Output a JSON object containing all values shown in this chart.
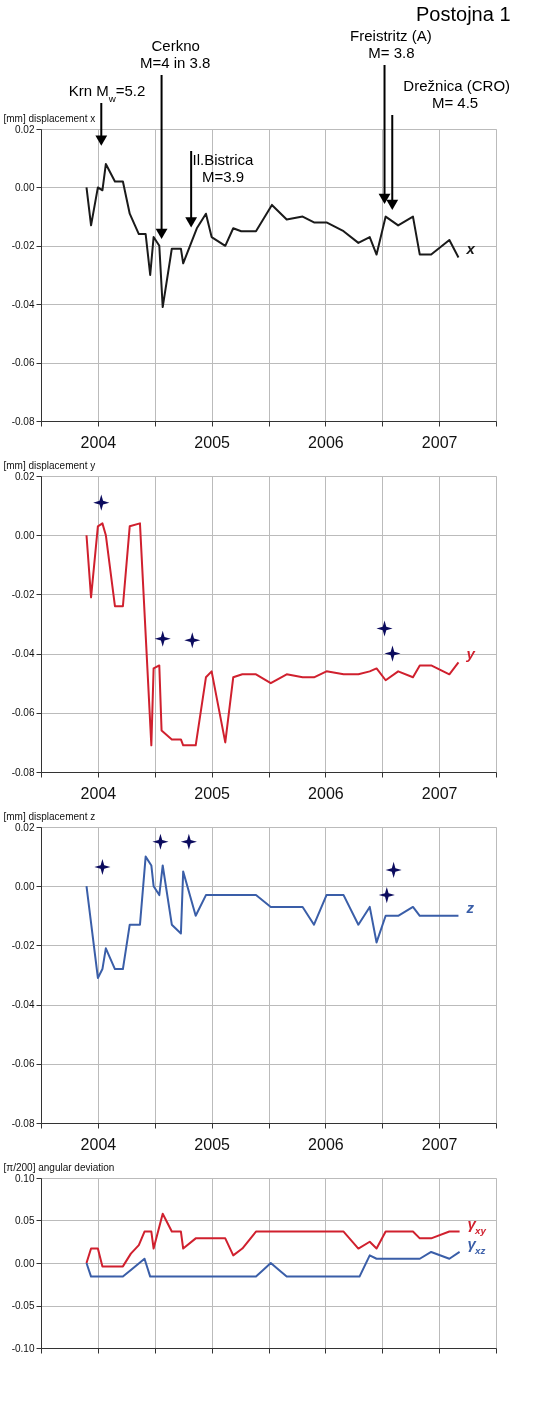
{
  "chart_data": [
    {
      "type": "line",
      "title": "Postojna 1",
      "ylabel": "[mm] displacement x",
      "xlim": [
        2004,
        2008
      ],
      "xticks": [
        {
          "value": 2004,
          "label": null
        },
        {
          "value": 2004.5,
          "label": "2004"
        },
        {
          "value": 2005,
          "label": null
        },
        {
          "value": 2005.5,
          "label": "2005"
        },
        {
          "value": 2006,
          "label": null
        },
        {
          "value": 2006.5,
          "label": "2006"
        },
        {
          "value": 2007,
          "label": null
        },
        {
          "value": 2007.5,
          "label": "2007"
        },
        {
          "value": 2008,
          "label": null
        }
      ],
      "ylim": [
        -0.08,
        0.02
      ],
      "yticks": [
        {
          "value": 0.02,
          "label": "0.02"
        },
        {
          "value": 0,
          "label": "0.00"
        },
        {
          "value": -0.02,
          "label": "-0.02"
        },
        {
          "value": -0.04,
          "label": "-0.04"
        },
        {
          "value": -0.06,
          "label": "-0.06"
        },
        {
          "value": -0.08,
          "label": "-0.08"
        }
      ],
      "grid": true,
      "legend": false,
      "marker": "none",
      "series": [
        {
          "name": "x",
          "color": "#1a1a1a",
          "x": [
            2004.4,
            2004.44,
            2004.5,
            2004.54,
            2004.57,
            2004.65,
            2004.72,
            2004.78,
            2004.86,
            2004.92,
            2004.96,
            2004.99,
            2005.04,
            2005.07,
            2005.15,
            2005.23,
            2005.25,
            2005.37,
            2005.45,
            2005.5,
            2005.62,
            2005.69,
            2005.76,
            2005.89,
            2006.03,
            2006.16,
            2006.3,
            2006.4,
            2006.51,
            2006.66,
            2006.79,
            2006.89,
            2006.95,
            2007.03,
            2007.14,
            2007.27,
            2007.33,
            2007.43,
            2007.59,
            2007.67
          ],
          "values": [
            0.0,
            -0.013,
            0.0,
            -0.001,
            0.008,
            0.002,
            0.002,
            -0.009,
            -0.016,
            -0.016,
            -0.03,
            -0.017,
            -0.02,
            -0.041,
            -0.021,
            -0.021,
            -0.026,
            -0.014,
            -0.009,
            -0.017,
            -0.02,
            -0.014,
            -0.015,
            -0.015,
            -0.006,
            -0.011,
            -0.01,
            -0.012,
            -0.012,
            -0.015,
            -0.019,
            -0.017,
            -0.023,
            -0.01,
            -0.013,
            -0.01,
            -0.023,
            -0.023,
            -0.018,
            -0.024
          ]
        }
      ],
      "annotations": [
        "Krn M$_{w}$=5.2",
        "Cerkno\nM=4 in 3.8",
        "Il.Bistrica\nM=3.9",
        "Freistritz (A)\nM= 3.8",
        "Drežnica (CRO)\nM= 4.5"
      ]
    },
    {
      "type": "line",
      "ylabel": "[mm] displacement y",
      "xlim": [
        2004,
        2008
      ],
      "xticks": [
        {
          "value": 2004,
          "label": null
        },
        {
          "value": 2004.5,
          "label": "2004"
        },
        {
          "value": 2005,
          "label": null
        },
        {
          "value": 2005.5,
          "label": "2005"
        },
        {
          "value": 2006,
          "label": null
        },
        {
          "value": 2006.5,
          "label": "2006"
        },
        {
          "value": 2007,
          "label": null
        },
        {
          "value": 2007.5,
          "label": "2007"
        },
        {
          "value": 2008,
          "label": null
        }
      ],
      "ylim": [
        -0.08,
        0.02
      ],
      "yticks": [
        {
          "value": 0.02,
          "label": "0.02"
        },
        {
          "value": 0,
          "label": "0.00"
        },
        {
          "value": -0.02,
          "label": "-0.02"
        },
        {
          "value": -0.04,
          "label": "-0.04"
        },
        {
          "value": -0.06,
          "label": "-0.06"
        },
        {
          "value": -0.08,
          "label": "-0.08"
        }
      ],
      "grid": true,
      "legend": false,
      "series": [
        {
          "name": "y",
          "color": "#d0202e",
          "marker": "none",
          "x": [
            2004.4,
            2004.44,
            2004.5,
            2004.54,
            2004.57,
            2004.65,
            2004.72,
            2004.78,
            2004.87,
            2004.97,
            2004.99,
            2005.04,
            2005.06,
            2005.15,
            2005.23,
            2005.25,
            2005.36,
            2005.45,
            2005.5,
            2005.62,
            2005.69,
            2005.77,
            2005.89,
            2006.02,
            2006.16,
            2006.3,
            2006.4,
            2006.51,
            2006.66,
            2006.79,
            2006.89,
            2006.95,
            2007.03,
            2007.14,
            2007.27,
            2007.33,
            2007.43,
            2007.59,
            2007.67
          ],
          "values": [
            0.0,
            -0.021,
            0.003,
            0.004,
            0.0,
            -0.024,
            -0.024,
            0.003,
            0.004,
            -0.071,
            -0.045,
            -0.044,
            -0.066,
            -0.069,
            -0.069,
            -0.071,
            -0.071,
            -0.048,
            -0.046,
            -0.07,
            -0.048,
            -0.047,
            -0.047,
            -0.05,
            -0.047,
            -0.048,
            -0.048,
            -0.046,
            -0.047,
            -0.047,
            -0.046,
            -0.045,
            -0.049,
            -0.046,
            -0.048,
            -0.044,
            -0.044,
            -0.047,
            -0.043
          ]
        },
        {
          "type": "scatter",
          "marker": "star",
          "color": "#0b0b5e",
          "x": [
            2004.53,
            2005.07,
            2005.33,
            2007.02,
            2007.09
          ],
          "values": [
            0.011,
            -0.035,
            -0.0355,
            -0.0315,
            -0.04
          ]
        }
      ]
    },
    {
      "type": "line",
      "ylabel": "[mm] displacement z",
      "xlim": [
        2004,
        2008
      ],
      "xticks": [
        {
          "value": 2004,
          "label": null
        },
        {
          "value": 2004.5,
          "label": "2004"
        },
        {
          "value": 2005,
          "label": null
        },
        {
          "value": 2005.5,
          "label": "2005"
        },
        {
          "value": 2006,
          "label": null
        },
        {
          "value": 2006.5,
          "label": "2006"
        },
        {
          "value": 2007,
          "label": null
        },
        {
          "value": 2007.5,
          "label": "2007"
        },
        {
          "value": 2008,
          "label": null
        }
      ],
      "ylim": [
        -0.08,
        0.02
      ],
      "yticks": [
        {
          "value": 0.02,
          "label": "0.02"
        },
        {
          "value": 0,
          "label": "0.00"
        },
        {
          "value": -0.02,
          "label": "-0.02"
        },
        {
          "value": -0.04,
          "label": "-0.04"
        },
        {
          "value": -0.06,
          "label": "-0.06"
        },
        {
          "value": -0.08,
          "label": "-0.08"
        }
      ],
      "grid": true,
      "legend": false,
      "series": [
        {
          "name": "z",
          "color": "#3a5ea8",
          "marker": "none",
          "x": [
            2004.4,
            2004.5,
            2004.54,
            2004.57,
            2004.65,
            2004.72,
            2004.78,
            2004.87,
            2004.92,
            2004.97,
            2004.99,
            2005.04,
            2005.07,
            2005.15,
            2005.23,
            2005.25,
            2005.36,
            2005.45,
            2005.89,
            2006.02,
            2006.3,
            2006.4,
            2006.51,
            2006.66,
            2006.79,
            2006.89,
            2006.95,
            2007.03,
            2007.14,
            2007.27,
            2007.33,
            2007.67
          ],
          "values": [
            0.0,
            -0.031,
            -0.028,
            -0.021,
            -0.028,
            -0.028,
            -0.013,
            -0.013,
            0.01,
            0.007,
            0.0,
            -0.003,
            0.007,
            -0.013,
            -0.016,
            0.005,
            -0.01,
            -0.003,
            -0.003,
            -0.007,
            -0.007,
            -0.013,
            -0.003,
            -0.003,
            -0.013,
            -0.007,
            -0.019,
            -0.01,
            -0.01,
            -0.007,
            -0.01,
            -0.01
          ]
        },
        {
          "type": "scatter",
          "marker": "star",
          "color": "#0b0b5e",
          "x": [
            2004.54,
            2005.05,
            2005.3,
            2007.1,
            2007.04
          ],
          "values": [
            0.0065,
            0.015,
            0.015,
            0.0055,
            -0.003
          ]
        }
      ]
    },
    {
      "type": "line",
      "ylabel": "[π/200] angular deviation",
      "xlim": [
        2004,
        2008
      ],
      "tick_labels": "y",
      "xticks": [
        {
          "value": 2004,
          "label": null
        },
        {
          "value": 2004.5,
          "label": null
        },
        {
          "value": 2005,
          "label": null
        },
        {
          "value": 2005.5,
          "label": null
        },
        {
          "value": 2006,
          "label": null
        },
        {
          "value": 2006.5,
          "label": null
        },
        {
          "value": 2007,
          "label": null
        },
        {
          "value": 2007.5,
          "label": null
        },
        {
          "value": 2008,
          "label": null
        }
      ],
      "ylim": [
        -0.1,
        0.1
      ],
      "yticks": [
        {
          "value": 0.1,
          "label": "0.10"
        },
        {
          "value": 0.05,
          "label": "0.05"
        },
        {
          "value": 0,
          "label": "0.00"
        },
        {
          "value": -0.05,
          "label": "-0.05"
        },
        {
          "value": -0.1,
          "label": "-0.10"
        }
      ],
      "grid": true,
      "legend": false,
      "marker": "none",
      "series": [
        {
          "name": "γ$_{xy}$",
          "color": "#d0202e",
          "x": [
            2004.4,
            2004.44,
            2004.5,
            2004.54,
            2004.72,
            2004.79,
            2004.86,
            2004.91,
            2004.97,
            2004.99,
            2005.07,
            2005.15,
            2005.23,
            2005.25,
            2005.36,
            2005.62,
            2005.69,
            2005.77,
            2005.89,
            2006.66,
            2006.79,
            2006.89,
            2006.95,
            2007.03,
            2007.27,
            2007.33,
            2007.43,
            2007.59,
            2007.68
          ],
          "values": [
            0.0,
            0.017,
            0.017,
            -0.004,
            -0.004,
            0.011,
            0.021,
            0.037,
            0.037,
            0.017,
            0.058,
            0.037,
            0.037,
            0.017,
            0.029,
            0.029,
            0.009,
            0.017,
            0.037,
            0.037,
            0.017,
            0.025,
            0.017,
            0.037,
            0.037,
            0.029,
            0.029,
            0.037,
            0.037
          ]
        },
        {
          "name": "γ$_{xz}$",
          "color": "#3a5ea8",
          "x": [
            2004.4,
            2004.44,
            2004.72,
            2004.91,
            2004.96,
            2005.89,
            2006.02,
            2006.16,
            2006.8,
            2006.89,
            2006.95,
            2007.33,
            2007.43,
            2007.59,
            2007.68
          ],
          "values": [
            0.0,
            -0.016,
            -0.016,
            0.005,
            -0.016,
            -0.016,
            0.0,
            -0.016,
            -0.016,
            0.009,
            0.005,
            0.005,
            0.013,
            0.005,
            0.013
          ]
        }
      ]
    }
  ]
}
